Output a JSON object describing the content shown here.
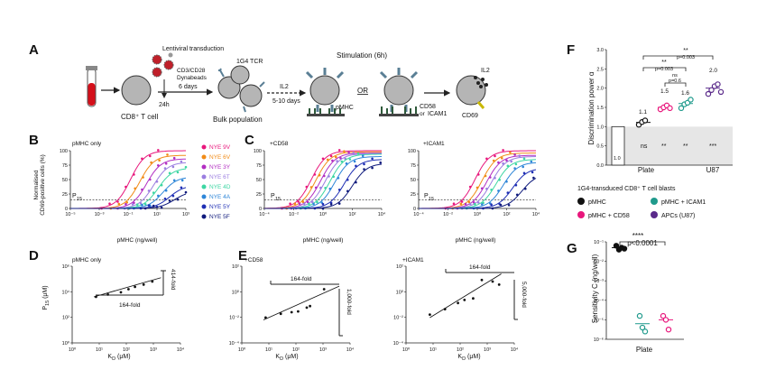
{
  "panel_labels": {
    "A": "A",
    "B": "B",
    "C": "C",
    "D": "D",
    "E": "E",
    "F": "F",
    "G": "G"
  },
  "panel_a": {
    "lentiviral": "Lentiviral transduction",
    "dynabeads_1": "CD3/CD28",
    "dynabeads_2": "Dynabeads",
    "six_days": "6 days",
    "t24h": "24h",
    "cd8_tcell": "CD8⁺ T cell",
    "tcr": "1G4 TCR",
    "il2_arrow": "IL2",
    "days_5_10": "5-10 days",
    "bulk": "Bulk population",
    "stimulation": "Stimulation (6h)",
    "or": "OR",
    "pmhc": "pMHC",
    "cd58": "CD58",
    "or_small": "or",
    "icam1": "ICAM1",
    "il2_out": "IL2",
    "cd69": "CD69",
    "colors": {
      "tube": "#d40f1a",
      "cell": "#b5b5b5",
      "receptor": "#5a7f95",
      "pmhc": "#2e5a3a",
      "virus": "#c0202a"
    }
  },
  "panel_b": {
    "title": "pMHC only",
    "ylabel_1": "Normalised",
    "ylabel_2": "CD69-positive cells (%)",
    "xlabel": "pMHC (ng/well)",
    "threshold_label": "P",
    "threshold_sub": "15",
    "y_ticks": [
      "0",
      "25",
      "50",
      "75",
      "100"
    ],
    "x_ticks": [
      "10⁻⁵",
      "10⁻³",
      "10⁻¹",
      "10¹",
      "10³"
    ]
  },
  "panel_c": {
    "left_title": "+CD58",
    "right_title": "+ICAM1",
    "xlabel": "pMHC (ng/well)",
    "threshold_label": "P",
    "threshold_sub": "15",
    "y_ticks": [
      "0",
      "25",
      "50",
      "75",
      "100"
    ],
    "x_ticks_left": [
      "10⁻⁴",
      "10⁻²",
      "10⁰",
      "10²",
      "10⁴"
    ],
    "x_ticks_right": [
      "10⁻⁴",
      "10⁻²",
      "10⁰",
      "10²",
      "10⁴"
    ]
  },
  "legend_b": [
    {
      "name": "NYE 9V",
      "color": "#e8177c"
    },
    {
      "name": "NYE 6V",
      "color": "#f18b17"
    },
    {
      "name": "NYE 3Y",
      "color": "#b22ec2"
    },
    {
      "name": "NYE 6T",
      "color": "#9b7ee0"
    },
    {
      "name": "NYE 4D",
      "color": "#3dd6a3"
    },
    {
      "name": "NYE 4A",
      "color": "#2e86d8"
    },
    {
      "name": "NYE 5Y",
      "color": "#1f2fb4"
    },
    {
      "name": "NYE 5F",
      "color": "#0f1a7c"
    }
  ],
  "panel_d": {
    "title": "pMHC only",
    "ylabel": "P",
    "ylabel_sub": "15",
    "ylabel_unit": " (μM)",
    "xlabel": "K",
    "xlabel_sub": "D",
    "xlabel_unit": " (μM)",
    "fold_x": "164-fold",
    "fold_y": "414-fold",
    "x_ticks": [
      "10⁰",
      "10¹",
      "10²",
      "10³",
      "10⁴"
    ],
    "y_ticks": [
      "10⁰",
      "10²",
      "10⁴",
      "10⁶"
    ]
  },
  "panel_e": {
    "left_title": "+CD58",
    "right_title": "+ICAM1",
    "xlabel": "K",
    "xlabel_sub": "D",
    "xlabel_unit": " (μM)",
    "fold_x_left": "164-fold",
    "fold_y_left": "1,000-fold",
    "fold_x_right": "164-fold",
    "fold_y_right": "5,000-fold",
    "x_ticks": [
      "10⁰",
      "10¹",
      "10²",
      "10³",
      "10⁴"
    ],
    "y_ticks": [
      "10⁻⁴",
      "10⁻²",
      "10⁰",
      "10²"
    ]
  },
  "panel_f": {
    "ylabel": "Discrimination power α",
    "y_ticks": [
      "0.0",
      "0.5",
      "1.0",
      "1.5",
      "2.0",
      "2.5",
      "3.0"
    ],
    "x_labels": [
      "Plate",
      "U87"
    ],
    "bar_label": "1.0",
    "group_values": [
      "1.1",
      "1.5",
      "1.6",
      "2.0"
    ],
    "ns_labels": [
      "ns"
    ],
    "sig_stars": [
      "**",
      "**",
      "***"
    ],
    "brackets": [
      {
        "label": "**"
      },
      {
        "label": "p=0.003"
      },
      {
        "label": "**"
      },
      {
        "label": "p=0.003"
      },
      {
        "label": "ns"
      },
      {
        "label": "p=0.6"
      }
    ],
    "legend_title": "1G4-transduced CD8⁺ T cell blasts",
    "legend": [
      {
        "name": "pMHC",
        "color": "#111111"
      },
      {
        "name": "pMHC + ICAM1",
        "color": "#1f9a8c"
      },
      {
        "name": "pMHC + CD58",
        "color": "#e8177c"
      },
      {
        "name": "APCs (U87)",
        "color": "#5a2a8a"
      }
    ]
  },
  "panel_g": {
    "ylabel": "Sensitivity C (ng/well)",
    "y_ticks": [
      "10⁻¹",
      "10⁻²",
      "10⁻³",
      "10⁻⁴",
      "10⁻⁵",
      "10⁻⁶"
    ],
    "stars": "****",
    "pval": "p<0.0001",
    "xlabel": "Plate"
  }
}
